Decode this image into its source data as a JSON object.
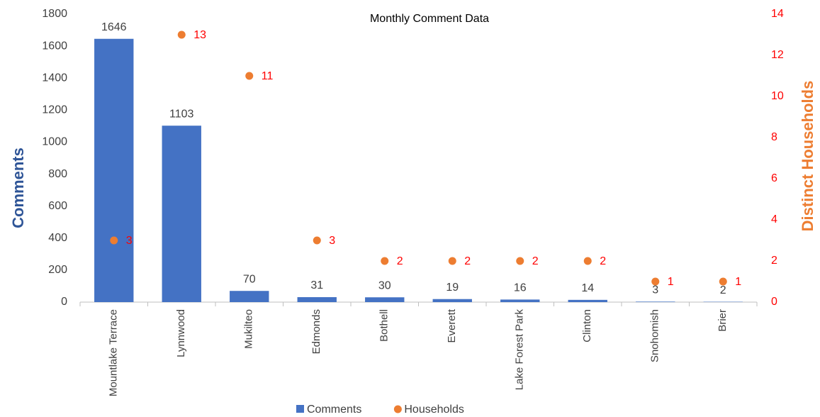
{
  "chart_data": {
    "type": "bar",
    "title": "Monthly Comment Data",
    "categories": [
      "Mountlake Terrace",
      "Lynnwood",
      "Mukilteo",
      "Edmonds",
      "Bothell",
      "Everett",
      "Lake Forest Park",
      "Clinton",
      "Snohomish",
      "Brier"
    ],
    "series": [
      {
        "name": "Comments",
        "type": "bar",
        "color": "#4472c4",
        "values": [
          1646,
          1103,
          70,
          31,
          30,
          19,
          16,
          14,
          3,
          2
        ]
      },
      {
        "name": "Households",
        "type": "scatter",
        "axis": "y2",
        "color": "#ed7d31",
        "values": [
          3,
          13,
          11,
          3,
          2,
          2,
          2,
          2,
          1,
          1
        ]
      }
    ],
    "y_label": "Comments",
    "y2_label": "Distinct Households",
    "ylim": [
      0,
      1800
    ],
    "yticks": [
      0,
      200,
      400,
      600,
      800,
      1000,
      1200,
      1400,
      1600,
      1800
    ],
    "y2lim": [
      0,
      14
    ],
    "y2ticks": [
      0,
      2,
      4,
      6,
      8,
      10,
      12,
      14
    ],
    "grid": false,
    "legend": "bottom"
  }
}
